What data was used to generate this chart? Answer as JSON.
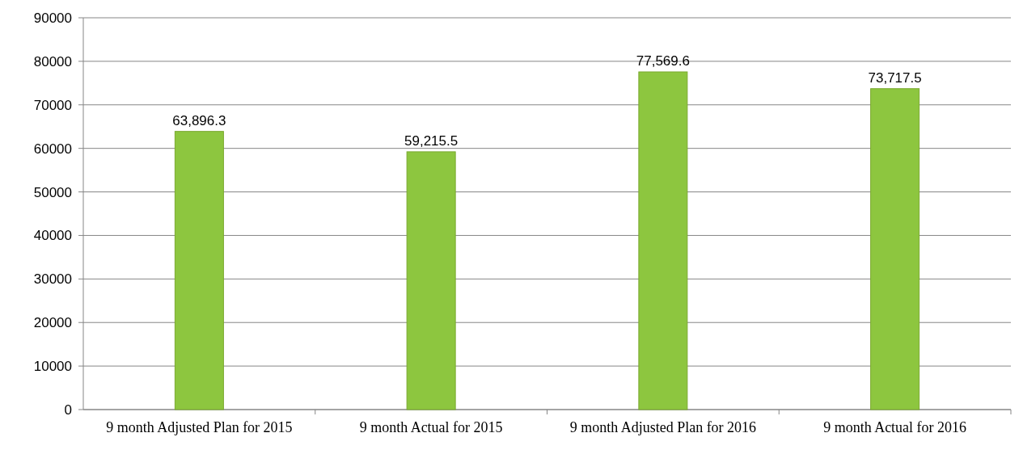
{
  "chart_data": {
    "type": "bar",
    "categories": [
      "9 month Adjusted Plan for 2015",
      "9 month Actual for 2015",
      "9 month Adjusted Plan for 2016",
      "9 month Actual for 2016"
    ],
    "values": [
      63896.3,
      59215.5,
      77569.6,
      73717.5
    ],
    "value_labels": [
      "63,896.3",
      "59,215.5",
      "77,569.6",
      "73,717.5"
    ],
    "color": "#8dc63f",
    "ylim": [
      0,
      90000
    ],
    "yticks": [
      0,
      10000,
      20000,
      30000,
      40000,
      50000,
      60000,
      70000,
      80000,
      90000
    ],
    "grid": "y"
  }
}
